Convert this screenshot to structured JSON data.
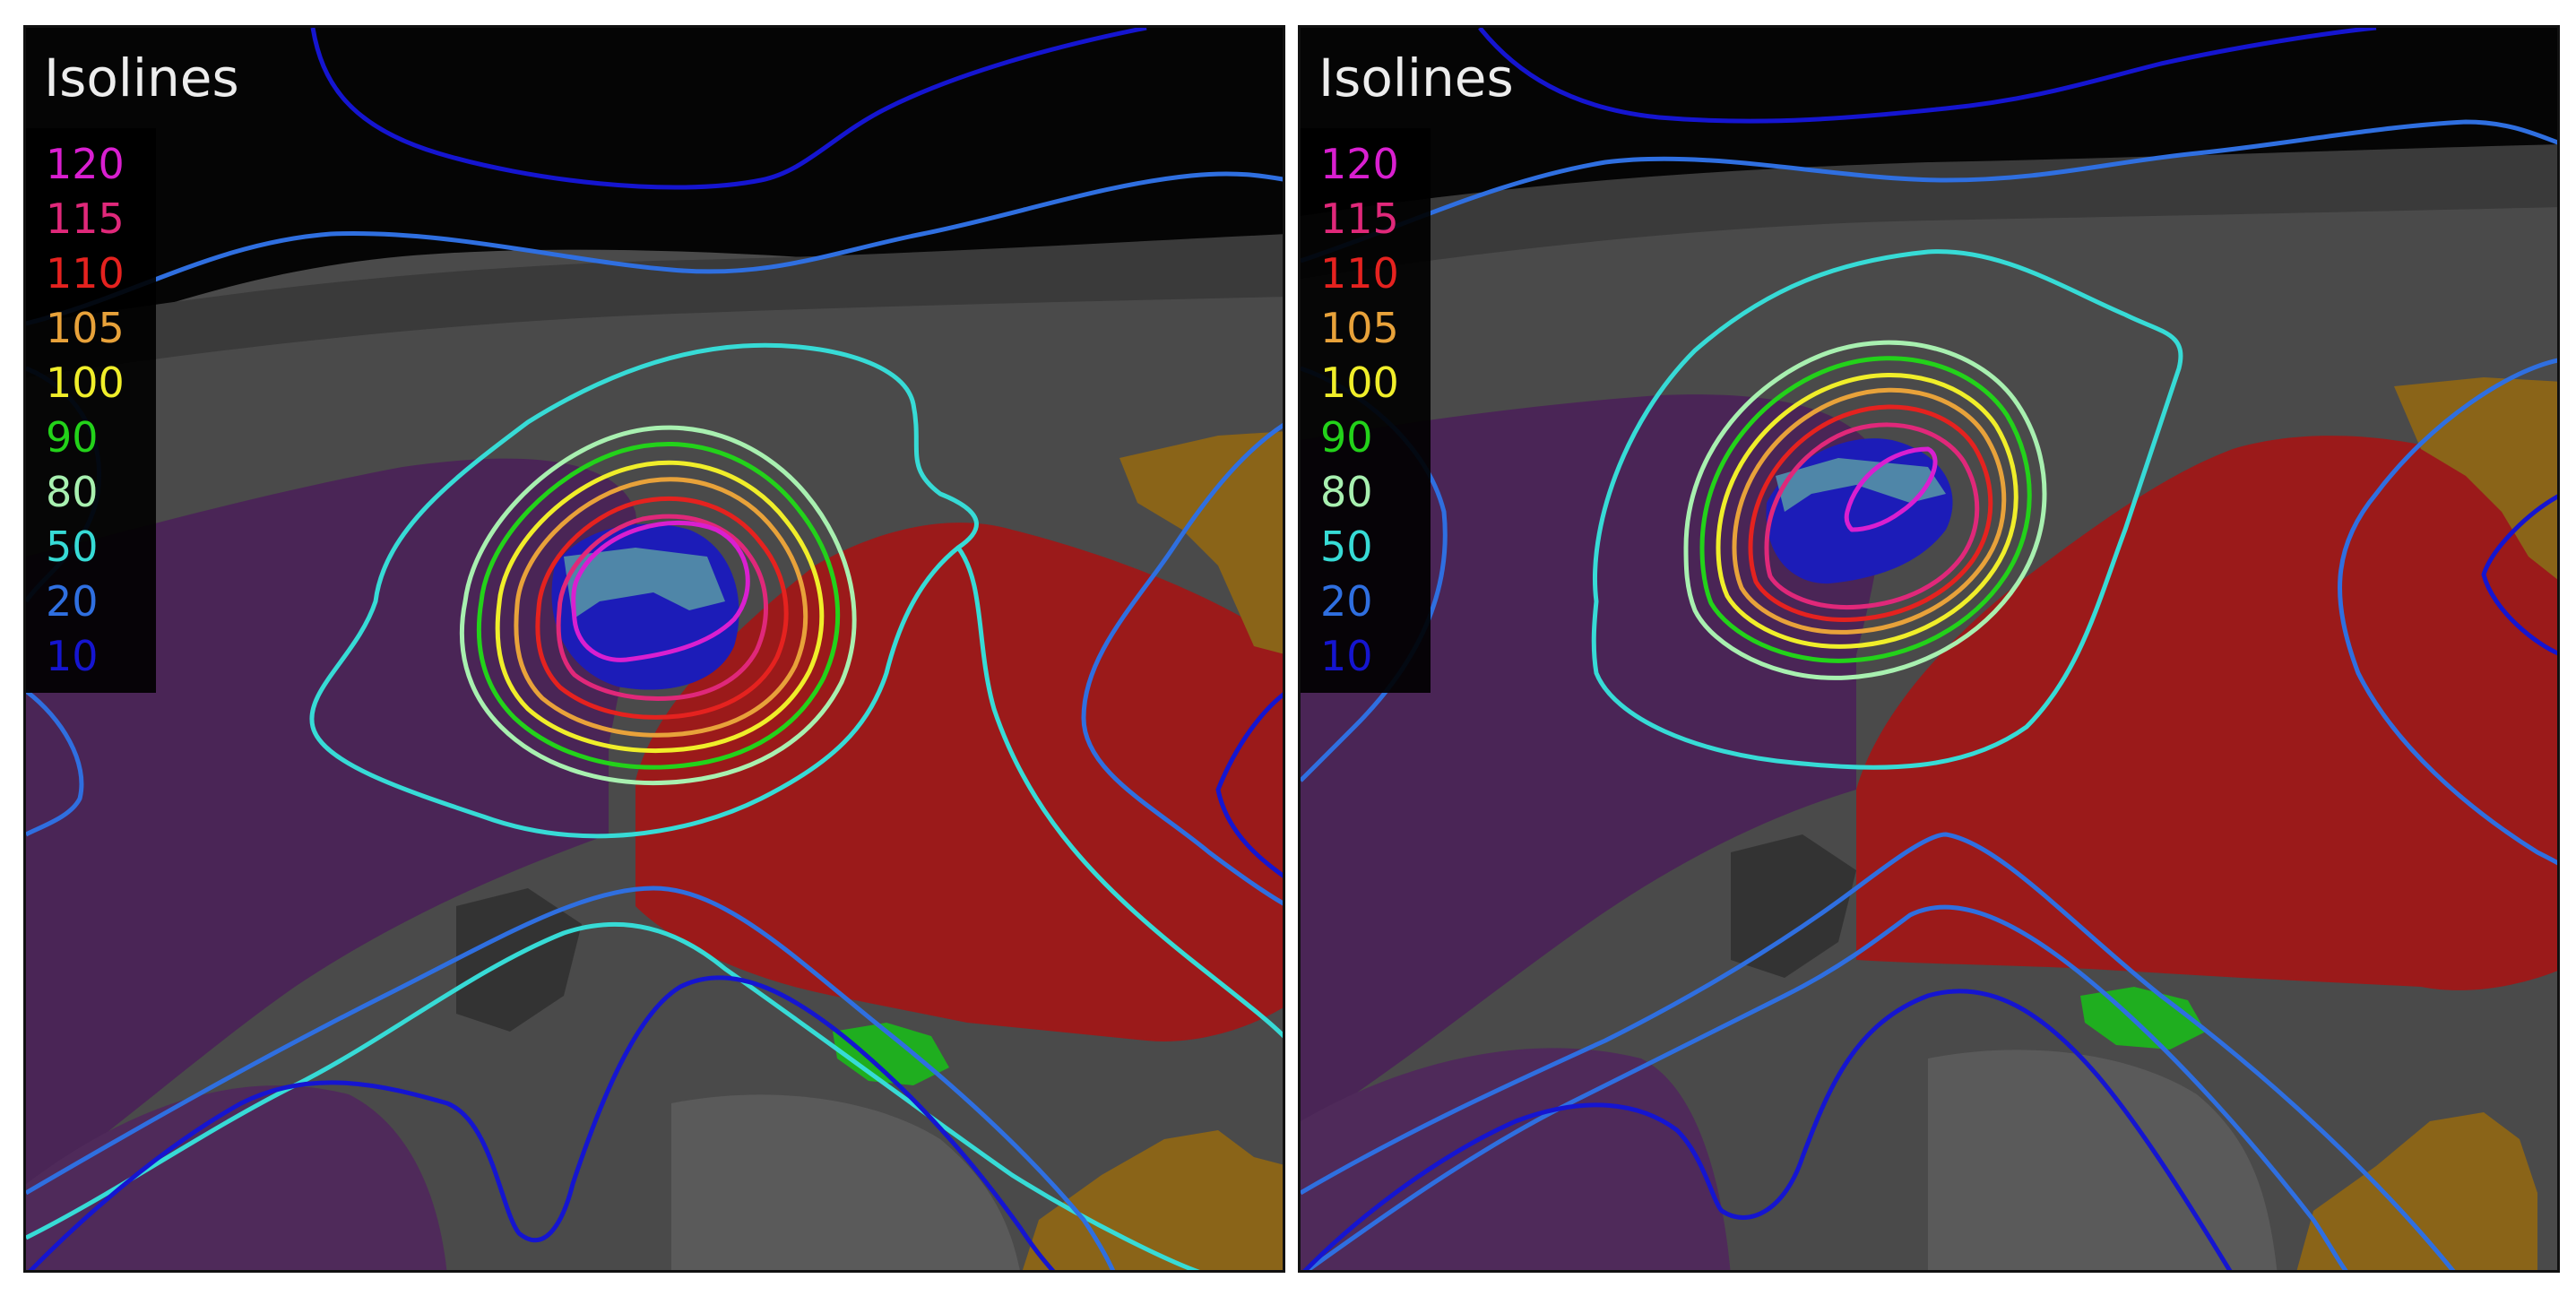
{
  "panels": [
    {
      "id": "left",
      "legend": {
        "title": "Isolines",
        "items": [
          {
            "value": "120",
            "color": "#d91fd0"
          },
          {
            "value": "115",
            "color": "#e0287a"
          },
          {
            "value": "110",
            "color": "#e5221f"
          },
          {
            "value": "105",
            "color": "#e8a23a"
          },
          {
            "value": "100",
            "color": "#f0ee2a"
          },
          {
            "value": "90",
            "color": "#23d21a"
          },
          {
            "value": "80",
            "color": "#a8f0b0"
          },
          {
            "value": "50",
            "color": "#37dbd6"
          },
          {
            "value": "20",
            "color": "#2f6fe0"
          },
          {
            "value": "10",
            "color": "#1515d0"
          }
        ]
      }
    },
    {
      "id": "right",
      "legend": {
        "title": "Isolines",
        "items": [
          {
            "value": "120",
            "color": "#d91fd0"
          },
          {
            "value": "115",
            "color": "#e0287a"
          },
          {
            "value": "110",
            "color": "#e5221f"
          },
          {
            "value": "105",
            "color": "#e8a23a"
          },
          {
            "value": "100",
            "color": "#f0ee2a"
          },
          {
            "value": "90",
            "color": "#23d21a"
          },
          {
            "value": "80",
            "color": "#a8f0b0"
          },
          {
            "value": "50",
            "color": "#37dbd6"
          },
          {
            "value": "20",
            "color": "#2f6fe0"
          },
          {
            "value": "10",
            "color": "#1515d0"
          }
        ]
      }
    }
  ]
}
